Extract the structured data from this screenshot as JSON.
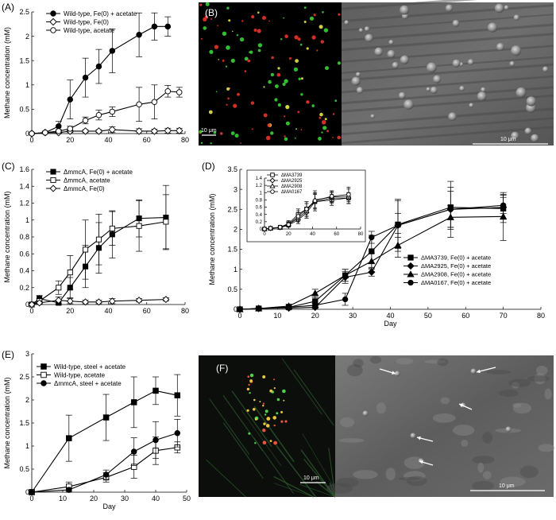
{
  "panels": {
    "A": {
      "label": "(A)"
    },
    "B": {
      "label": "(B)",
      "scale_left": "10 μm",
      "scale_right": "10 μm"
    },
    "C": {
      "label": "(C)"
    },
    "D": {
      "label": "(D)"
    },
    "E": {
      "label": "(E)"
    },
    "F": {
      "label": "(F)",
      "scale_left": "10 μm",
      "scale_right": "10 μm"
    }
  },
  "chart_data": [
    {
      "id": "A",
      "type": "line",
      "ylabel": "Methane concentration (mM)",
      "xlim": [
        0,
        80
      ],
      "ylim": [
        0,
        2.5
      ],
      "xticks": [
        0,
        20,
        40,
        60,
        80
      ],
      "yticks": [
        0,
        0.5,
        1,
        1.5,
        2,
        2.5
      ],
      "legend": "top-left",
      "series": [
        {
          "name": "Wild-type, Fe(0) + acetate",
          "marker": "circle-filled",
          "x": [
            0,
            7,
            14,
            20,
            28,
            35,
            42,
            56,
            64,
            71
          ],
          "y": [
            0,
            0.02,
            0.15,
            0.7,
            1.15,
            1.38,
            1.7,
            2.03,
            2.2,
            2.2
          ],
          "err": [
            0.02,
            0.03,
            0.1,
            0.4,
            0.4,
            0.35,
            0.45,
            0.45,
            0.28,
            0.2
          ]
        },
        {
          "name": "Wild-type, Fe(0)",
          "marker": "diamond-open",
          "x": [
            0,
            7,
            14,
            20,
            28,
            35,
            42,
            56,
            64,
            71,
            77
          ],
          "y": [
            0,
            0.02,
            0.02,
            0.05,
            0.05,
            0.05,
            0.08,
            0.05,
            0.05,
            0.06,
            0.06
          ],
          "err": [
            0.02,
            0.02,
            0.02,
            0.03,
            0.03,
            0.03,
            0.06,
            0.05,
            0.04,
            0.05,
            0.05
          ]
        },
        {
          "name": "Wild-type, acetate",
          "marker": "circle-open",
          "x": [
            0,
            7,
            14,
            20,
            28,
            35,
            42,
            56,
            64,
            71,
            77
          ],
          "y": [
            0,
            0.02,
            0.05,
            0.1,
            0.27,
            0.38,
            0.45,
            0.6,
            0.65,
            0.87,
            0.85
          ],
          "err": [
            0.02,
            0.02,
            0.03,
            0.05,
            0.07,
            0.1,
            0.1,
            0.35,
            0.35,
            0.12,
            0.1
          ]
        }
      ]
    },
    {
      "id": "C",
      "type": "line",
      "ylabel": "Methane concentration (mM)",
      "xlim": [
        0,
        80
      ],
      "ylim": [
        0,
        1.6
      ],
      "xticks": [
        0,
        20,
        40,
        60,
        80
      ],
      "yticks": [
        0,
        0.2,
        0.4,
        0.6,
        0.8,
        1,
        1.2,
        1.4,
        1.6
      ],
      "legend": "top-left",
      "series": [
        {
          "name": "ΔmmcA, Fe(0) + acetate",
          "marker": "square-filled",
          "x": [
            0,
            4,
            14,
            20,
            28,
            35,
            42,
            56,
            70
          ],
          "y": [
            0,
            0.07,
            0.02,
            0.2,
            0.45,
            0.67,
            0.83,
            1.02,
            1.03
          ],
          "err": [
            0.02,
            0.04,
            0.03,
            0.12,
            0.25,
            0.3,
            0.28,
            0.22,
            0.38
          ]
        },
        {
          "name": "ΔmmcA, acetate",
          "marker": "square-open",
          "x": [
            0,
            4,
            14,
            20,
            28,
            35,
            42,
            56,
            70
          ],
          "y": [
            0,
            0.04,
            0.2,
            0.38,
            0.65,
            0.77,
            0.9,
            0.93,
            0.98
          ],
          "err": [
            0.02,
            0.03,
            0.08,
            0.2,
            0.35,
            0.3,
            0.2,
            0.3,
            0.32
          ]
        },
        {
          "name": "ΔmmcA, Fe(0)",
          "marker": "diamond-open",
          "x": [
            0,
            4,
            14,
            20,
            28,
            35,
            42,
            56,
            70
          ],
          "y": [
            0,
            0.02,
            0.05,
            0.04,
            0.03,
            0.03,
            0.04,
            0.05,
            0.06
          ],
          "err": [
            0.02,
            0.02,
            0.04,
            0.03,
            0.02,
            0.02,
            0.03,
            0.02,
            0.02
          ]
        }
      ]
    },
    {
      "id": "D",
      "type": "line",
      "ylabel": "Methane concentration (mM)",
      "xlabel": "Day",
      "xlim": [
        0,
        80
      ],
      "ylim": [
        0,
        3.5
      ],
      "xticks": [
        0,
        10,
        20,
        30,
        40,
        50,
        60,
        70,
        80
      ],
      "yticks": [
        0,
        0.5,
        1,
        1.5,
        2,
        2.5,
        3,
        3.5
      ],
      "legend": "bottom-right",
      "series": [
        {
          "name": "ΔMA3739, Fe(0) + acetate",
          "marker": "square-filled",
          "x": [
            0,
            5,
            13,
            20,
            28,
            35,
            42,
            56,
            70
          ],
          "y": [
            0,
            0.02,
            0.05,
            0.2,
            0.85,
            1.45,
            2.12,
            2.55,
            2.52
          ],
          "err": [
            0.02,
            0.02,
            0.03,
            0.1,
            0.15,
            0.4,
            0.6,
            0.5,
            0.35
          ]
        },
        {
          "name": "ΔMA2925, Fe(0) + acetate",
          "marker": "diamond-filled",
          "x": [
            0,
            5,
            13,
            20,
            28,
            35,
            42,
            56,
            70
          ],
          "y": [
            0,
            0.02,
            0.03,
            0.05,
            0.8,
            0.93,
            2.1,
            2.5,
            2.55
          ],
          "err": [
            0.02,
            0.02,
            0.02,
            0.03,
            0.15,
            0.1,
            0.3,
            0.45,
            0.3
          ]
        },
        {
          "name": "ΔMA2908, Fe(0) + acetate",
          "marker": "triangle-filled",
          "x": [
            0,
            5,
            13,
            20,
            28,
            35,
            42,
            56,
            70
          ],
          "y": [
            0,
            0.02,
            0.08,
            0.4,
            0.85,
            1.2,
            1.6,
            2.3,
            2.32
          ],
          "err": [
            0.02,
            0.02,
            0.05,
            0.1,
            0.15,
            0.2,
            0.3,
            0.3,
            0.6
          ]
        },
        {
          "name": "ΔMA0167, Fe(0) + acetate",
          "marker": "circle-filled",
          "x": [
            0,
            5,
            13,
            20,
            28,
            35,
            42,
            56,
            70
          ],
          "y": [
            0,
            0.02,
            0.05,
            0.1,
            0.25,
            1.8,
            2.1,
            2.5,
            2.6
          ],
          "err": [
            0.02,
            0.02,
            0.03,
            0.05,
            0.15,
            0.15,
            0.65,
            0.7,
            0.2
          ]
        }
      ],
      "inset": {
        "xlim": [
          0,
          80
        ],
        "ylim": [
          0,
          1.4
        ],
        "xticks": [
          0,
          20,
          40,
          60,
          80
        ],
        "yticks": [
          0,
          0.2,
          0.4,
          0.6,
          0.8,
          1,
          1.2,
          1.4
        ],
        "legend": "top-left",
        "series": [
          {
            "name": "ΔMA3739",
            "marker": "square-open",
            "x": [
              0,
              5,
              13,
              20,
              28,
              35,
              42,
              56,
              70
            ],
            "y": [
              0,
              0.02,
              0.05,
              0.15,
              0.4,
              0.55,
              0.75,
              0.8,
              0.85
            ],
            "err": [
              0.02,
              0.02,
              0.03,
              0.08,
              0.15,
              0.2,
              0.2,
              0.15,
              0.15
            ]
          },
          {
            "name": "ΔMA2925",
            "marker": "diamond-open",
            "x": [
              0,
              5,
              13,
              20,
              28,
              35,
              42,
              56,
              70
            ],
            "y": [
              0,
              0.02,
              0.04,
              0.1,
              0.25,
              0.45,
              0.75,
              0.85,
              0.85
            ],
            "err": [
              0.02,
              0.02,
              0.03,
              0.05,
              0.1,
              0.15,
              0.25,
              0.15,
              0.15
            ]
          },
          {
            "name": "ΔMA2908",
            "marker": "triangle-open",
            "x": [
              0,
              5,
              13,
              20,
              28,
              35,
              42,
              56,
              70
            ],
            "y": [
              0,
              0.02,
              0.04,
              0.12,
              0.3,
              0.5,
              0.8,
              0.88,
              0.9
            ],
            "err": [
              0.02,
              0.02,
              0.03,
              0.06,
              0.15,
              0.2,
              0.25,
              0.15,
              0.2
            ]
          },
          {
            "name": "ΔMA0167",
            "marker": "circle-open",
            "x": [
              0,
              5,
              13,
              20,
              28,
              35,
              42,
              56,
              70
            ],
            "y": [
              0,
              0.02,
              0.05,
              0.12,
              0.35,
              0.55,
              0.78,
              0.9,
              0.95
            ],
            "err": [
              0.02,
              0.02,
              0.03,
              0.06,
              0.15,
              0.2,
              0.2,
              0.15,
              0.2
            ]
          }
        ]
      }
    },
    {
      "id": "E",
      "type": "line",
      "ylabel": "Methane concentration (mM)",
      "xlabel": "Day",
      "xlim": [
        0,
        50
      ],
      "ylim": [
        0,
        3
      ],
      "xticks": [
        0,
        10,
        20,
        30,
        40,
        50
      ],
      "yticks": [
        0,
        0.5,
        1,
        1.5,
        2,
        2.5,
        3
      ],
      "legend": "top-left",
      "series": [
        {
          "name": "Wild-type, steel + acetate",
          "marker": "square-filled",
          "x": [
            0,
            12,
            24,
            33,
            40,
            47
          ],
          "y": [
            0,
            1.17,
            1.62,
            1.95,
            2.2,
            2.1
          ],
          "err": [
            0.02,
            0.5,
            0.5,
            0.55,
            0.3,
            0.45
          ]
        },
        {
          "name": "Wild-type, acetate",
          "marker": "square-open",
          "x": [
            0,
            12,
            24,
            33,
            40,
            47
          ],
          "y": [
            0,
            0.12,
            0.32,
            0.55,
            0.9,
            0.97
          ],
          "err": [
            0.02,
            0.1,
            0.1,
            0.25,
            0.3,
            0.12
          ]
        },
        {
          "name": "ΔmmcA, steel + acetate",
          "marker": "circle-filled",
          "x": [
            0,
            12,
            24,
            33,
            40,
            47
          ],
          "y": [
            0,
            0.05,
            0.38,
            0.88,
            1.13,
            1.28
          ],
          "err": [
            0.02,
            0.05,
            0.1,
            0.3,
            0.4,
            0.3
          ]
        }
      ]
    }
  ]
}
